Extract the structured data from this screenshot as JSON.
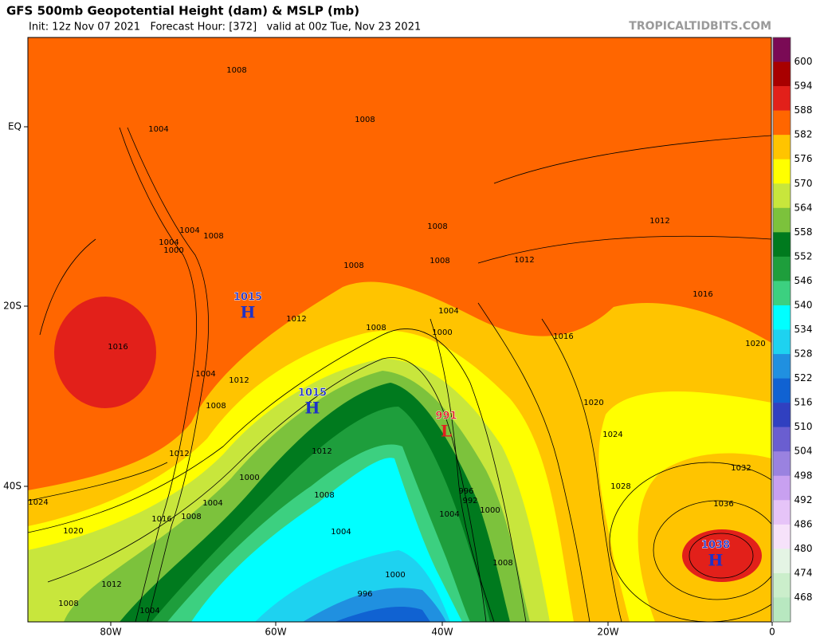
{
  "header": {
    "title": "GFS 500mb Geopotential Height (dam) & MSLP (mb)",
    "subtitle": "Init: 12z Nov 07 2021   Forecast Hour: [372]   valid at 00z Tue, Nov 23 2021",
    "watermark": "TROPICALTIDBITS.COM"
  },
  "colorbar": {
    "levels": [
      600,
      594,
      588,
      582,
      576,
      570,
      564,
      558,
      552,
      546,
      540,
      534,
      528,
      522,
      516,
      510,
      504,
      498,
      492,
      486,
      480,
      474,
      468
    ],
    "colors": [
      "#7a0a55",
      "#a80000",
      "#e2201a",
      "#ff6600",
      "#ffc400",
      "#ffff00",
      "#c8e63c",
      "#7cc23c",
      "#007a1e",
      "#1e9e3c",
      "#3cd080",
      "#00ffff",
      "#1ed2f0",
      "#2090e0",
      "#1062d2",
      "#3040c0",
      "#6a5ed0",
      "#9a82e0",
      "#c8a0f0",
      "#e6c4f8",
      "#f6e2fa",
      "#e4f4e4",
      "#cbeecb",
      "#b8e8c0"
    ]
  },
  "axes": {
    "latitudes": [
      "EQ",
      "20S",
      "40S"
    ],
    "longitudes": [
      "80W",
      "60W",
      "40W",
      "20W",
      "0"
    ]
  },
  "centers": [
    {
      "value": 1015,
      "symbol": "H"
    },
    {
      "value": 1015,
      "symbol": "H"
    },
    {
      "value": 991,
      "symbol": "L"
    },
    {
      "value": 1038,
      "symbol": "H"
    }
  ],
  "isobar_labels": [
    1008,
    1004,
    1008,
    1004,
    1008,
    1004,
    1000,
    1008,
    1008,
    1008,
    1012,
    1012,
    1016,
    1016,
    1012,
    1004,
    1000,
    1008,
    1016,
    1020,
    1004,
    1012,
    1008,
    1020,
    1024,
    1012,
    1012,
    1032,
    1000,
    1028,
    1024,
    1004,
    1008,
    996,
    992,
    1036,
    1000,
    1008,
    1016,
    1004,
    1004,
    1020,
    1008,
    1000,
    1012,
    996,
    1008,
    1004
  ]
}
